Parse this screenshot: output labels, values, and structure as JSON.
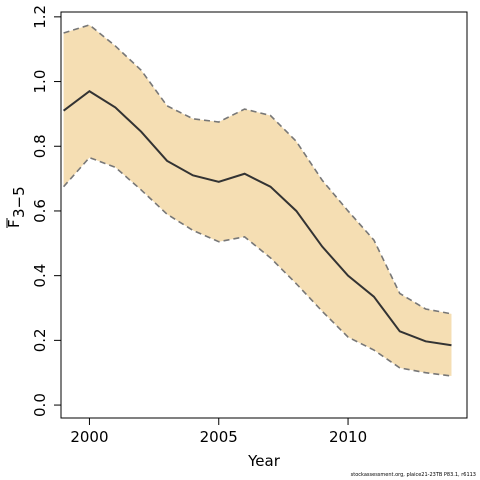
{
  "chart_data": {
    "type": "line",
    "xlabel": "Year",
    "ylabel_main": "F",
    "ylabel_sub": "3−5",
    "xlim": [
      1998.9,
      2014.6
    ],
    "ylim": [
      -0.04,
      1.215
    ],
    "xticks": [
      "2000",
      "2005",
      "2010"
    ],
    "yticks": [
      "0.0",
      "0.2",
      "0.4",
      "0.6",
      "0.8",
      "1.0",
      "1.2"
    ],
    "grid": false,
    "x": [
      1999,
      2000,
      2001,
      2002,
      2003,
      2004,
      2005,
      2006,
      2007,
      2008,
      2009,
      2010,
      2011,
      2012,
      2013,
      2014
    ],
    "series": [
      {
        "role": "estimate",
        "color": "#333333",
        "values": [
          0.91,
          0.97,
          0.92,
          0.845,
          0.755,
          0.71,
          0.69,
          0.715,
          0.675,
          0.6,
          0.49,
          0.4,
          0.335,
          0.228,
          0.197,
          0.185
        ]
      },
      {
        "role": "upper",
        "color": "#777777",
        "values": [
          1.15,
          1.175,
          1.11,
          1.035,
          0.925,
          0.885,
          0.875,
          0.915,
          0.895,
          0.815,
          0.695,
          0.6,
          0.51,
          0.345,
          0.297,
          0.282
        ]
      },
      {
        "role": "lower",
        "color": "#777777",
        "values": [
          0.675,
          0.765,
          0.735,
          0.665,
          0.59,
          0.54,
          0.505,
          0.52,
          0.455,
          0.375,
          0.29,
          0.21,
          0.17,
          0.115,
          0.1,
          0.09
        ]
      }
    ],
    "band_color": "#f5deb3"
  },
  "footer": "stockassessment.org, plaice21-23TB P83.1, r6113"
}
